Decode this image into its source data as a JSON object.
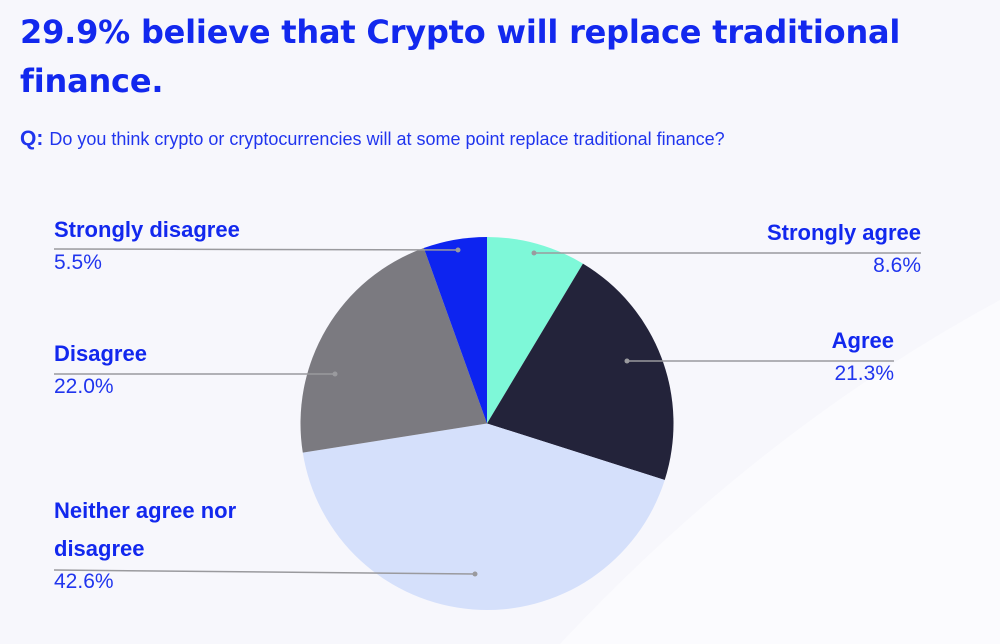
{
  "header": {
    "title": "29.9% believe that Crypto will replace traditional finance.",
    "question_prefix": "Q:",
    "question": "Do you think crypto or cryptocurrencies will at some point replace traditional finance?"
  },
  "colors": {
    "text_accent": "#1228ee",
    "background": "#f7f7fc",
    "leader_line": "#9a9a9e"
  },
  "chart_data": {
    "type": "pie",
    "title": "29.9% believe that Crypto will replace traditional finance.",
    "subtitle": "Q: Do you think crypto or cryptocurrencies will at some point replace traditional finance?",
    "start_angle": "12 o'clock, clockwise",
    "legend_position": "labels with leader lines",
    "categories": [
      "Strongly agree",
      "Agree",
      "Neither agree nor disagree",
      "Disagree",
      "Strongly disagree"
    ],
    "values": [
      8.6,
      21.3,
      42.6,
      22.0,
      5.5
    ],
    "value_labels": [
      "8.6%",
      "21.3%",
      "42.6%",
      "22.0%",
      "5.5%"
    ],
    "colors": [
      "#7ef8d8",
      "#23233a",
      "#d5e0fb",
      "#7b7a80",
      "#0d24f0"
    ]
  },
  "labels": {
    "strongly_agree": {
      "name": "Strongly agree",
      "pct": "8.6%"
    },
    "agree": {
      "name": "Agree",
      "pct": "21.3%"
    },
    "neither": {
      "name": "Neither agree nor disagree",
      "name_line1": "Neither agree nor",
      "name_line2": "disagree",
      "pct": "42.6%"
    },
    "disagree": {
      "name": "Disagree",
      "pct": "22.0%"
    },
    "strongly_disagree": {
      "name": "Strongly disagree",
      "pct": "5.5%"
    }
  }
}
